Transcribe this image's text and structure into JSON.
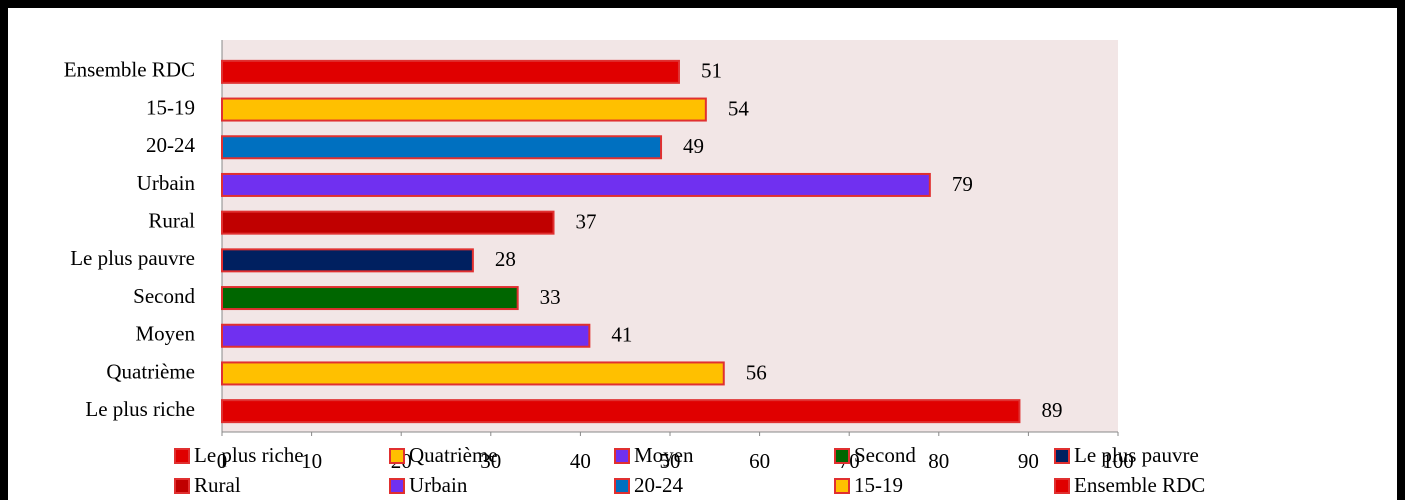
{
  "chart_data": {
    "type": "barh",
    "categories": [
      "Ensemble RDC",
      "15-19",
      "20-24",
      "Urbain",
      "Rural",
      "Le plus pauvre",
      "Second",
      "Moyen",
      "Quatrième",
      "Le plus riche"
    ],
    "values": [
      51,
      54,
      49,
      79,
      37,
      28,
      33,
      41,
      56,
      89
    ],
    "colors": [
      "#e00000",
      "#ffc000",
      "#0070c0",
      "#7030f0",
      "#c00000",
      "#002060",
      "#006600",
      "#7030f0",
      "#ffc000",
      "#e00000"
    ],
    "edge_color": "#e03030",
    "xlim": [
      0,
      100
    ],
    "xticks": [
      0,
      10,
      20,
      30,
      40,
      50,
      60,
      70,
      80,
      90,
      100
    ],
    "grid": false,
    "legend": "bottom"
  }
}
